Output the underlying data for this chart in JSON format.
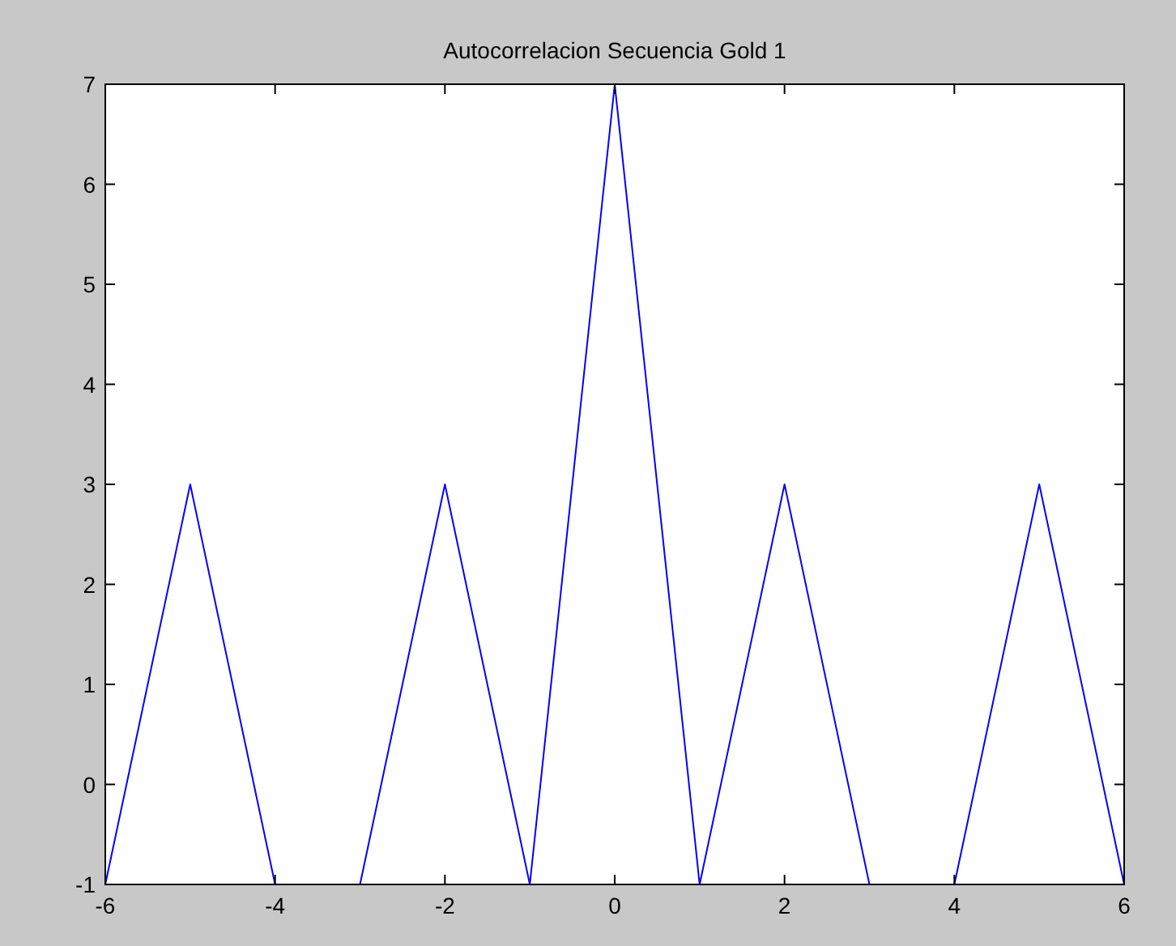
{
  "chart_data": {
    "type": "line",
    "title": "Autocorrelacion Secuencia Gold 1",
    "x": [
      -6,
      -5,
      -4,
      -3,
      -2,
      -1,
      0,
      1,
      2,
      3,
      4,
      5,
      6
    ],
    "series": [
      {
        "color": "#0000ff",
        "values": [
          -1,
          3,
          -1,
          -1,
          3,
          -1,
          7,
          -1,
          3,
          -1,
          -1,
          3,
          -1
        ]
      }
    ],
    "xlim": [
      -6,
      6
    ],
    "xticks": [
      -6,
      -4,
      -2,
      0,
      2,
      4,
      6
    ],
    "ylim": [
      -1,
      7
    ],
    "yticks": [
      -1,
      0,
      1,
      2,
      3,
      4,
      5,
      6,
      7
    ],
    "grid": false,
    "marker": "none",
    "line_style": "solid"
  }
}
